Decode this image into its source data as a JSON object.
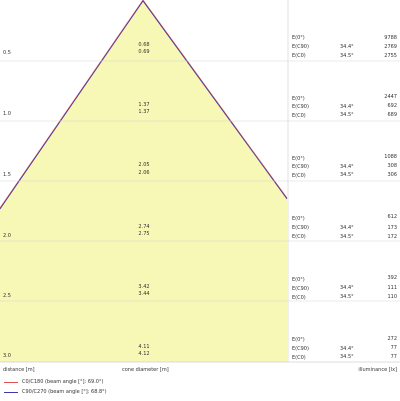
{
  "rows": [
    {
      "distance": "0.5",
      "diam_c0": "0.68",
      "diam_c90": "0.69",
      "e0_label": "E(0°)",
      "e0": "9788",
      "ec90_label": "E(C90)",
      "ec90_angle": "34.4°",
      "ec90": "2769",
      "ec0_label": "E(C0)",
      "ec0_angle": "34.5°",
      "ec0": "2755"
    },
    {
      "distance": "1.0",
      "diam_c0": "1.37",
      "diam_c90": "1.37",
      "e0_label": "E(0°)",
      "e0": "2447",
      "ec90_label": "E(C90)",
      "ec90_angle": "34.4°",
      "ec90": "692",
      "ec0_label": "E(C0)",
      "ec0_angle": "34.5°",
      "ec0": "689"
    },
    {
      "distance": "1.5",
      "diam_c0": "2.05",
      "diam_c90": "2.06",
      "e0_label": "E(0°)",
      "e0": "1088",
      "ec90_label": "E(C90)",
      "ec90_angle": "34.4°",
      "ec90": "308",
      "ec0_label": "E(C0)",
      "ec0_angle": "34.5°",
      "ec0": "306"
    },
    {
      "distance": "2.0",
      "diam_c0": "2.74",
      "diam_c90": "2.75",
      "e0_label": "E(0°)",
      "e0": "612",
      "ec90_label": "E(C90)",
      "ec90_angle": "34.4°",
      "ec90": "173",
      "ec0_label": "E(C0)",
      "ec0_angle": "34.5°",
      "ec0": "172"
    },
    {
      "distance": "2.5",
      "diam_c0": "3.42",
      "diam_c90": "3.44",
      "e0_label": "E(0°)",
      "e0": "392",
      "ec90_label": "E(C90)",
      "ec90_angle": "34.4°",
      "ec90": "111",
      "ec0_label": "E(C0)",
      "ec0_angle": "34.5°",
      "ec0": "110"
    },
    {
      "distance": "3.0",
      "diam_c0": "4.11",
      "diam_c90": "4.12",
      "e0_label": "E(0°)",
      "e0": "272",
      "ec90_label": "E(C90)",
      "ec90_angle": "34.4°",
      "ec90": "77",
      "ec0_label": "E(C0)",
      "ec0_angle": "34.5°",
      "ec0": "77"
    }
  ],
  "axis": {
    "distance": "distance [m]",
    "cone_diameter": "cone diameter [m]",
    "illuminance": "illuminance [lx]"
  },
  "legend": [
    {
      "label": "C0/C180 (beam angle [°]: 69.0°)",
      "color": "#e05050"
    },
    {
      "label": "C90/C270 (beam angle [°]: 68.8°)",
      "color": "#3a3aa8"
    }
  ],
  "colors": {
    "cone_fill": "#f7f7b6",
    "cone_outline": "#7a3a6a",
    "grid": "#d8d8d8"
  }
}
